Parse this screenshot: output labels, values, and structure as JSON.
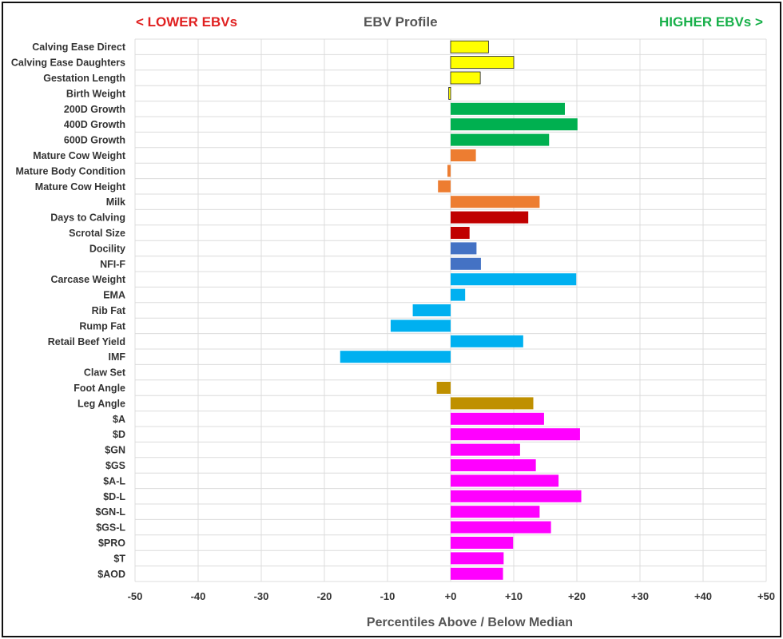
{
  "header": {
    "lower": "< LOWER EBVs",
    "title": "EBV Profile",
    "higher": "HIGHER EBVs >"
  },
  "chart_data": {
    "type": "bar",
    "orientation": "horizontal",
    "title": "EBV Profile",
    "xlabel": "Percentiles Above / Below Median",
    "ylabel": "",
    "xlim": [
      -50,
      50
    ],
    "xticks": [
      -50,
      -40,
      -30,
      -20,
      -10,
      0,
      10,
      20,
      30,
      40,
      50
    ],
    "xtick_labels": [
      "-50",
      "-40",
      "-30",
      "-20",
      "-10",
      "+0",
      "+10",
      "+20",
      "+30",
      "+40",
      "+50"
    ],
    "grid": true,
    "categories": [
      "Calving Ease Direct",
      "Calving Ease Daughters",
      "Gestation Length",
      "Birth Weight",
      "200D Growth",
      "400D Growth",
      "600D Growth",
      "Mature Cow Weight",
      "Mature Body Condition",
      "Mature Cow Height",
      "Milk",
      "Days to Calving",
      "Scrotal Size",
      "Docility",
      "NFI-F",
      "Carcase Weight",
      "EMA",
      "Rib Fat",
      "Rump Fat",
      "Retail Beef Yield",
      "IMF",
      "Claw Set",
      "Foot Angle",
      "Leg Angle",
      "$A",
      "$D",
      "$GN",
      "$GS",
      "$A-L",
      "$D-L",
      "$GN-L",
      "$GS-L",
      "$PRO",
      "$T",
      "$AOD"
    ],
    "values": [
      6,
      10,
      4.7,
      -0.3,
      18.1,
      20.1,
      15.6,
      4,
      -0.5,
      -2,
      14.1,
      12.3,
      3,
      4.1,
      4.8,
      19.9,
      2.3,
      -6,
      -9.5,
      11.5,
      -17.5,
      0,
      -2.2,
      13.1,
      14.8,
      20.5,
      11,
      13.5,
      17.1,
      20.7,
      14.1,
      15.9,
      9.9,
      8.4,
      8.3
    ],
    "colors": [
      "#ffff00",
      "#ffff00",
      "#ffff00",
      "#ffff00",
      "#00b050",
      "#00b050",
      "#00b050",
      "#ed7d31",
      "#ed7d31",
      "#ed7d31",
      "#ed7d31",
      "#c00000",
      "#c00000",
      "#4472c4",
      "#4472c4",
      "#00b0f0",
      "#00b0f0",
      "#00b0f0",
      "#00b0f0",
      "#00b0f0",
      "#00b0f0",
      "#bf9000",
      "#bf9000",
      "#bf9000",
      "#ff00ff",
      "#ff00ff",
      "#ff00ff",
      "#ff00ff",
      "#ff00ff",
      "#ff00ff",
      "#ff00ff",
      "#ff00ff",
      "#ff00ff",
      "#ff00ff",
      "#ff00ff"
    ]
  }
}
